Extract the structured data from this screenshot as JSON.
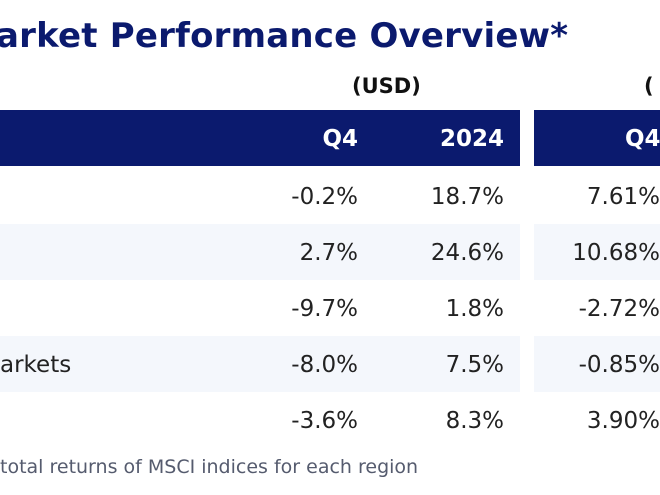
{
  "title": "arket Performance Overview*",
  "currency": {
    "usd": "(USD)",
    "local": "("
  },
  "header": {
    "q4": "Q4",
    "y2024": "2024",
    "q4_local": "Q4"
  },
  "rows": [
    {
      "name": "",
      "q4": "-0.2%",
      "y2024": "18.7%",
      "q4_local": "7.61%"
    },
    {
      "name": "",
      "q4": "2.7%",
      "y2024": "24.6%",
      "q4_local": "10.68%"
    },
    {
      "name": "",
      "q4": "-9.7%",
      "y2024": "1.8%",
      "q4_local": "-2.72%"
    },
    {
      "name": "arkets",
      "q4": "-8.0%",
      "y2024": "7.5%",
      "q4_local": "-0.85%"
    },
    {
      "name": "",
      "q4": "-3.6%",
      "y2024": "8.3%",
      "q4_local": "3.90%"
    }
  ],
  "footnote": "total returns of MSCI indices for each region",
  "colors": {
    "header_bg": "#0b1a6e",
    "title": "#0b1a6e",
    "band": "#f4f7fc"
  }
}
